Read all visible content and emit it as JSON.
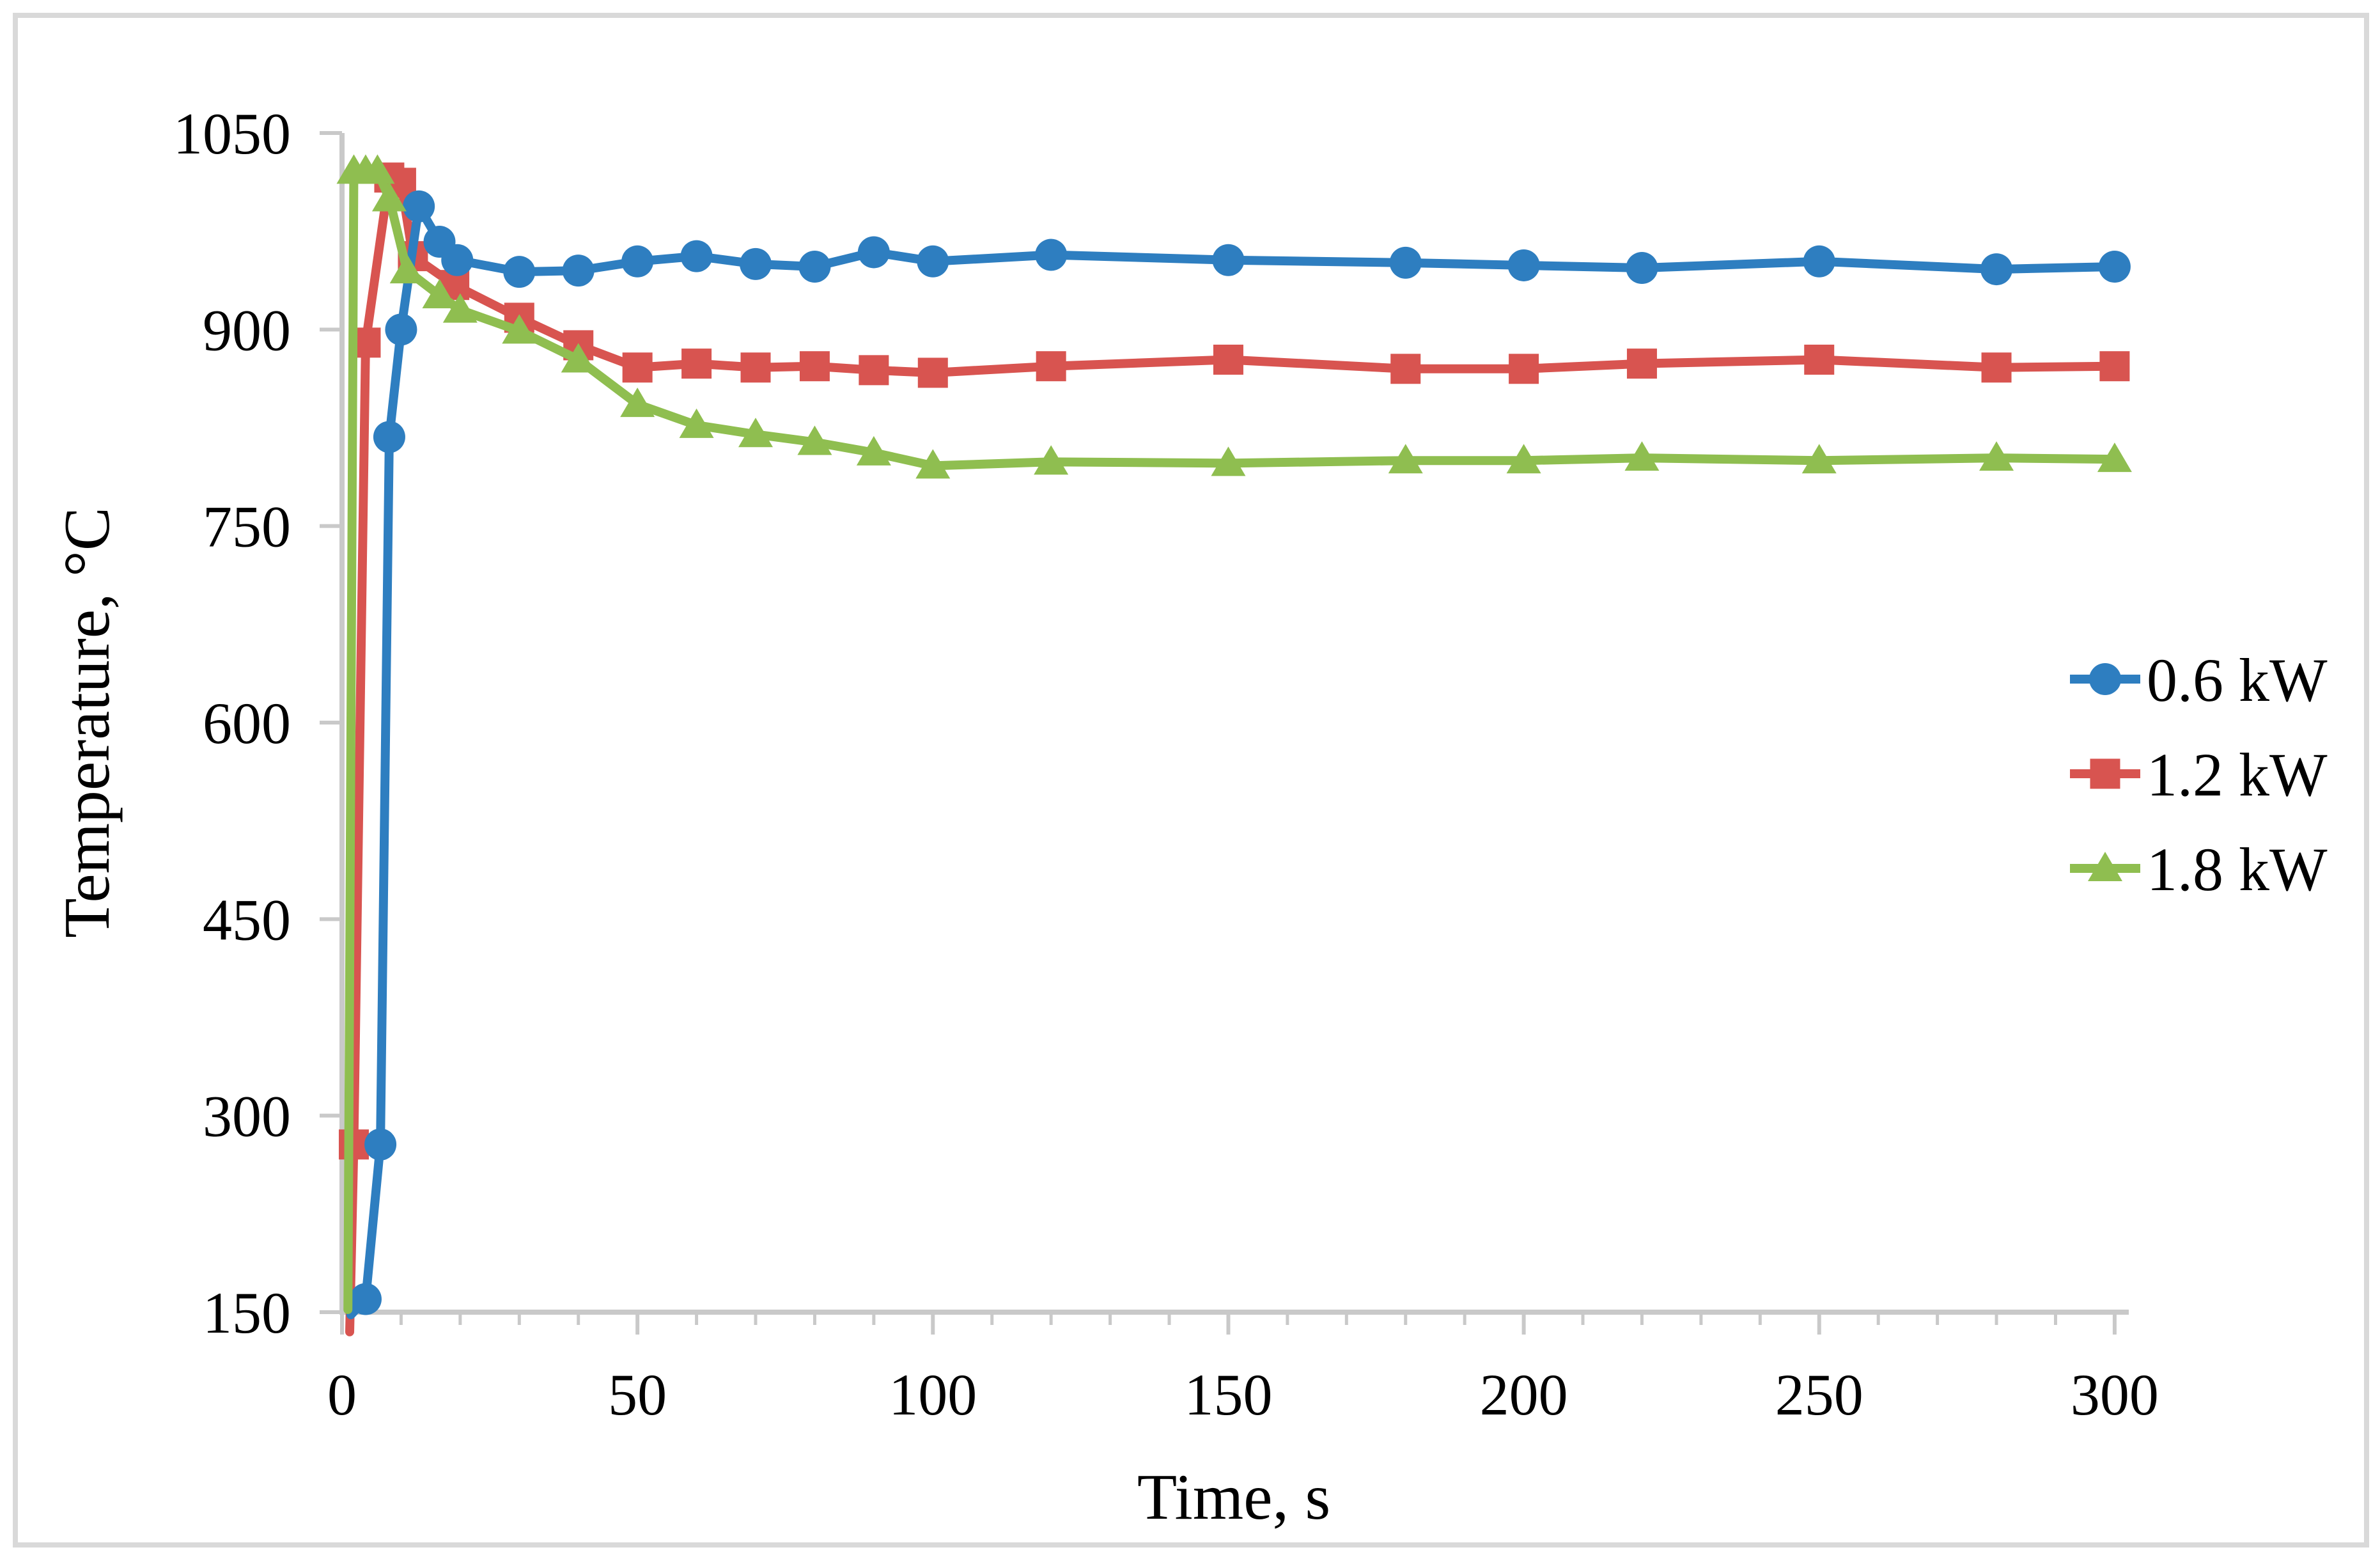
{
  "chart_data": {
    "type": "line",
    "xlabel": "Time, s",
    "ylabel": "Temperature, °C",
    "xlim": [
      0,
      300
    ],
    "ylim": [
      150,
      1050
    ],
    "x_ticks": [
      0,
      50,
      100,
      150,
      200,
      250,
      300
    ],
    "x_minor_tick_step": 10,
    "y_ticks": [
      150,
      300,
      450,
      600,
      750,
      900,
      1050
    ],
    "grid": false,
    "legend_position": "middle-right",
    "axis_color": "#c9c9c9",
    "border_color": "#d9d9d9",
    "series": [
      {
        "name": "0.6 kW",
        "color": "#2e7ec0",
        "marker": "circle",
        "hidden_start": [
          1.5,
          148
        ],
        "points": [
          [
            4,
            160
          ],
          [
            6.5,
            278
          ],
          [
            8,
            818
          ],
          [
            10,
            900
          ],
          [
            13,
            994
          ],
          [
            16.5,
            967
          ],
          [
            19.5,
            953
          ],
          [
            30,
            944
          ],
          [
            40,
            945
          ],
          [
            50,
            952
          ],
          [
            60,
            956
          ],
          [
            70,
            950
          ],
          [
            80,
            948
          ],
          [
            90,
            959
          ],
          [
            100,
            952
          ],
          [
            120,
            957
          ],
          [
            150,
            953
          ],
          [
            180,
            951
          ],
          [
            200,
            949
          ],
          [
            220,
            947
          ],
          [
            250,
            952
          ],
          [
            280,
            946
          ],
          [
            300,
            948
          ]
        ]
      },
      {
        "name": "1.2 kW",
        "color": "#d85450",
        "marker": "square",
        "hidden_start": [
          1.3,
          135
        ],
        "points": [
          [
            2,
            278
          ],
          [
            4,
            890
          ],
          [
            8,
            1016
          ],
          [
            10,
            1012
          ],
          [
            12,
            956
          ],
          [
            19,
            934
          ],
          [
            30,
            909
          ],
          [
            40,
            888
          ],
          [
            50,
            871
          ],
          [
            60,
            874
          ],
          [
            70,
            871
          ],
          [
            80,
            872
          ],
          [
            90,
            869
          ],
          [
            100,
            867
          ],
          [
            120,
            872
          ],
          [
            150,
            877
          ],
          [
            180,
            870
          ],
          [
            200,
            870
          ],
          [
            220,
            874
          ],
          [
            250,
            877
          ],
          [
            280,
            871
          ],
          [
            300,
            872
          ]
        ]
      },
      {
        "name": "1.8 kW",
        "color": "#8fbe50",
        "marker": "triangle",
        "hidden_start": [
          1,
          152
        ],
        "points": [
          [
            2,
            1021
          ],
          [
            4,
            1021
          ],
          [
            6,
            1021
          ],
          [
            8,
            1000
          ],
          [
            11,
            945
          ],
          [
            16.5,
            926
          ],
          [
            20,
            915
          ],
          [
            30,
            899
          ],
          [
            40,
            877
          ],
          [
            50,
            843
          ],
          [
            60,
            827
          ],
          [
            70,
            820
          ],
          [
            80,
            814
          ],
          [
            90,
            806
          ],
          [
            100,
            796
          ],
          [
            120,
            799
          ],
          [
            150,
            798
          ],
          [
            180,
            800
          ],
          [
            200,
            800
          ],
          [
            220,
            802
          ],
          [
            250,
            800
          ],
          [
            280,
            802
          ],
          [
            300,
            801
          ]
        ]
      }
    ]
  }
}
